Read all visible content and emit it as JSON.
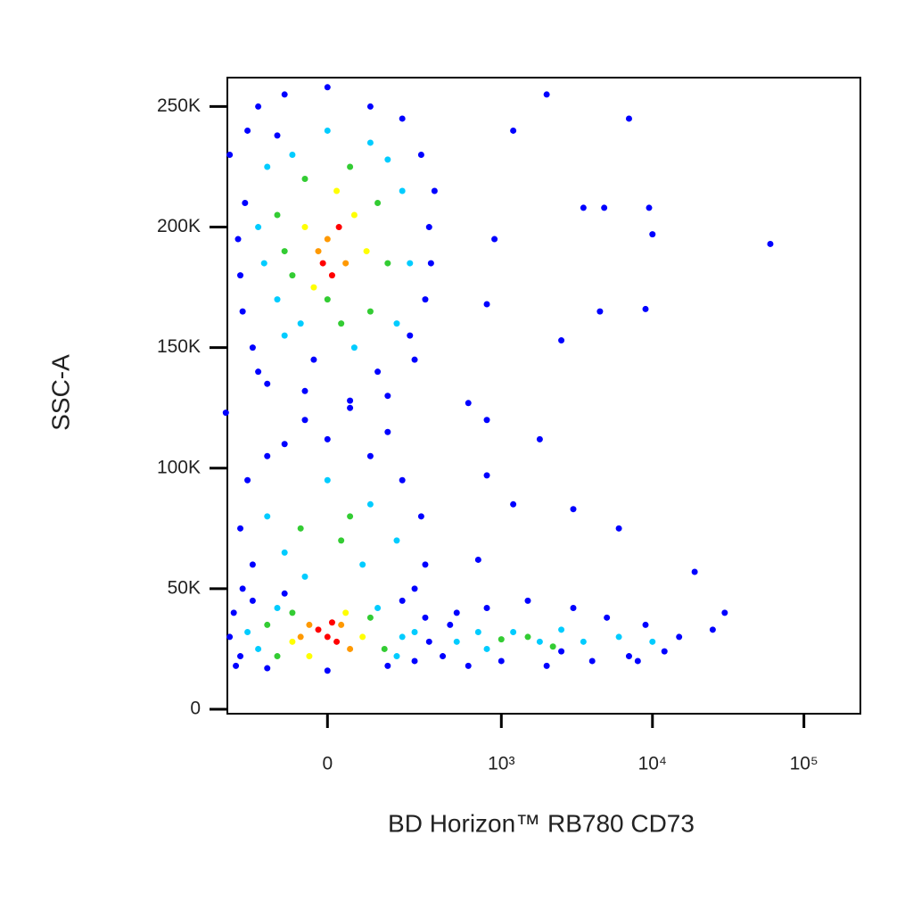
{
  "chart_data": {
    "type": "scatter",
    "x_label": "BD Horizon™ RB780 CD73",
    "y_label": "SSC-A",
    "xscale": "biexponential",
    "xlim": [
      -312,
      236000
    ],
    "ylim": [
      -1850,
      262000
    ],
    "xticks": [
      0,
      {
        "value": 1000,
        "label": "10³"
      },
      {
        "value": 10000,
        "label": "10⁴"
      },
      {
        "value": 100000,
        "label": "10⁵"
      }
    ],
    "yticks": [
      0,
      {
        "value": 50000,
        "label": "50K"
      },
      {
        "value": 100000,
        "label": "100K"
      },
      {
        "value": 150000,
        "label": "150K"
      },
      {
        "value": 200000,
        "label": "200K"
      },
      {
        "value": 250000,
        "label": "250K"
      }
    ],
    "points": [
      [
        -250,
        180000,
        "#00f"
      ],
      [
        -230,
        210000,
        "#00f"
      ],
      [
        -200,
        150000,
        "#00f"
      ],
      [
        -220,
        240000,
        "#00f"
      ],
      [
        -180,
        250000,
        "#00f"
      ],
      [
        -150,
        135000,
        "#00f"
      ],
      [
        -100,
        255000,
        "#00f"
      ],
      [
        0,
        258000,
        "#00f"
      ],
      [
        100,
        250000,
        "#00f"
      ],
      [
        200,
        245000,
        "#00f"
      ],
      [
        280,
        230000,
        "#00f"
      ],
      [
        320,
        200000,
        "#00f"
      ],
      [
        300,
        170000,
        "#00f"
      ],
      [
        250,
        145000,
        "#00f"
      ],
      [
        150,
        130000,
        "#00f"
      ],
      [
        50,
        128000,
        "#00f"
      ],
      [
        -50,
        132000,
        "#00f"
      ],
      [
        -260,
        195000,
        "#00f"
      ],
      [
        -240,
        165000,
        "#00f"
      ],
      [
        350,
        215000,
        "#00f"
      ],
      [
        330,
        185000,
        "#00f"
      ],
      [
        -120,
        238000,
        "#00f"
      ],
      [
        230,
        155000,
        "#00f"
      ],
      [
        -180,
        140000,
        "#00f"
      ],
      [
        120,
        140000,
        "#00f"
      ],
      [
        -30,
        145000,
        "#00f"
      ],
      [
        -180,
        200000,
        "#0cf"
      ],
      [
        -150,
        225000,
        "#0cf"
      ],
      [
        -120,
        170000,
        "#0cf"
      ],
      [
        -100,
        155000,
        "#0cf"
      ],
      [
        0,
        240000,
        "#0cf"
      ],
      [
        100,
        235000,
        "#0cf"
      ],
      [
        200,
        215000,
        "#0cf"
      ],
      [
        230,
        185000,
        "#0cf"
      ],
      [
        180,
        160000,
        "#0cf"
      ],
      [
        60,
        150000,
        "#0cf"
      ],
      [
        -60,
        160000,
        "#0cf"
      ],
      [
        -160,
        185000,
        "#0cf"
      ],
      [
        150,
        228000,
        "#0cf"
      ],
      [
        -80,
        230000,
        "#0cf"
      ],
      [
        -120,
        205000,
        "#3c3"
      ],
      [
        -80,
        180000,
        "#3c3"
      ],
      [
        -50,
        220000,
        "#3c3"
      ],
      [
        50,
        225000,
        "#3c3"
      ],
      [
        120,
        210000,
        "#3c3"
      ],
      [
        150,
        185000,
        "#3c3"
      ],
      [
        100,
        165000,
        "#3c3"
      ],
      [
        0,
        170000,
        "#3c3"
      ],
      [
        -100,
        190000,
        "#3c3"
      ],
      [
        30,
        160000,
        "#3c3"
      ],
      [
        -50,
        200000,
        "#ff0"
      ],
      [
        60,
        205000,
        "#ff0"
      ],
      [
        90,
        190000,
        "#ff0"
      ],
      [
        -30,
        175000,
        "#ff0"
      ],
      [
        20,
        215000,
        "#ff0"
      ],
      [
        0,
        195000,
        "#f90"
      ],
      [
        40,
        185000,
        "#f90"
      ],
      [
        -20,
        190000,
        "#f90"
      ],
      [
        10,
        180000,
        "#f00"
      ],
      [
        25,
        200000,
        "#f00"
      ],
      [
        -10,
        185000,
        "#f00"
      ],
      [
        -250,
        75000,
        "#00f"
      ],
      [
        -220,
        95000,
        "#00f"
      ],
      [
        -200,
        60000,
        "#00f"
      ],
      [
        -150,
        105000,
        "#00f"
      ],
      [
        -100,
        110000,
        "#00f"
      ],
      [
        0,
        112000,
        "#00f"
      ],
      [
        100,
        105000,
        "#00f"
      ],
      [
        200,
        95000,
        "#00f"
      ],
      [
        280,
        80000,
        "#00f"
      ],
      [
        300,
        60000,
        "#00f"
      ],
      [
        250,
        50000,
        "#00f"
      ],
      [
        -240,
        50000,
        "#00f"
      ],
      [
        150,
        115000,
        "#00f"
      ],
      [
        -50,
        120000,
        "#00f"
      ],
      [
        50,
        125000,
        "#00f"
      ],
      [
        -150,
        80000,
        "#0cf"
      ],
      [
        -100,
        65000,
        "#0cf"
      ],
      [
        0,
        95000,
        "#0cf"
      ],
      [
        100,
        85000,
        "#0cf"
      ],
      [
        180,
        70000,
        "#0cf"
      ],
      [
        -50,
        55000,
        "#0cf"
      ],
      [
        80,
        60000,
        "#0cf"
      ],
      [
        -60,
        75000,
        "#3c3"
      ],
      [
        30,
        70000,
        "#3c3"
      ],
      [
        50,
        80000,
        "#3c3"
      ],
      [
        -300,
        30000,
        "#00f"
      ],
      [
        -280,
        40000,
        "#00f"
      ],
      [
        -250,
        22000,
        "#00f"
      ],
      [
        -200,
        45000,
        "#00f"
      ],
      [
        -150,
        17000,
        "#00f"
      ],
      [
        -100,
        48000,
        "#00f"
      ],
      [
        0,
        16000,
        "#00f"
      ],
      [
        150,
        18000,
        "#00f"
      ],
      [
        250,
        20000,
        "#00f"
      ],
      [
        320,
        28000,
        "#00f"
      ],
      [
        300,
        38000,
        "#00f"
      ],
      [
        200,
        45000,
        "#00f"
      ],
      [
        -270,
        18000,
        "#00f"
      ],
      [
        -220,
        32000,
        "#0cf"
      ],
      [
        -180,
        25000,
        "#0cf"
      ],
      [
        200,
        30000,
        "#0cf"
      ],
      [
        180,
        22000,
        "#0cf"
      ],
      [
        -120,
        42000,
        "#0cf"
      ],
      [
        120,
        42000,
        "#0cf"
      ],
      [
        250,
        32000,
        "#0cf"
      ],
      [
        -150,
        35000,
        "#3c3"
      ],
      [
        -120,
        22000,
        "#3c3"
      ],
      [
        140,
        25000,
        "#3c3"
      ],
      [
        100,
        38000,
        "#3c3"
      ],
      [
        -80,
        40000,
        "#3c3"
      ],
      [
        -80,
        28000,
        "#ff0"
      ],
      [
        80,
        30000,
        "#ff0"
      ],
      [
        40,
        40000,
        "#ff0"
      ],
      [
        -40,
        22000,
        "#ff0"
      ],
      [
        -40,
        35000,
        "#f90"
      ],
      [
        50,
        25000,
        "#f90"
      ],
      [
        -60,
        30000,
        "#f90"
      ],
      [
        30,
        35000,
        "#f90"
      ],
      [
        0,
        30000,
        "#f00"
      ],
      [
        -20,
        33000,
        "#f00"
      ],
      [
        20,
        28000,
        "#f00"
      ],
      [
        10,
        36000,
        "#f00"
      ],
      [
        400,
        22000,
        "#00f"
      ],
      [
        500,
        40000,
        "#00f"
      ],
      [
        600,
        18000,
        "#00f"
      ],
      [
        800,
        42000,
        "#00f"
      ],
      [
        1000,
        20000,
        "#00f"
      ],
      [
        1500,
        45000,
        "#00f"
      ],
      [
        2000,
        18000,
        "#00f"
      ],
      [
        3000,
        42000,
        "#00f"
      ],
      [
        4000,
        20000,
        "#00f"
      ],
      [
        5000,
        38000,
        "#00f"
      ],
      [
        7000,
        22000,
        "#00f"
      ],
      [
        9000,
        35000,
        "#00f"
      ],
      [
        12000,
        24000,
        "#00f"
      ],
      [
        15000,
        30000,
        "#00f"
      ],
      [
        8000,
        20000,
        "#00f"
      ],
      [
        450,
        35000,
        "#00f"
      ],
      [
        2500,
        24000,
        "#00f"
      ],
      [
        500,
        28000,
        "#0cf"
      ],
      [
        800,
        25000,
        "#0cf"
      ],
      [
        1200,
        32000,
        "#0cf"
      ],
      [
        1800,
        28000,
        "#0cf"
      ],
      [
        2500,
        33000,
        "#0cf"
      ],
      [
        3500,
        28000,
        "#0cf"
      ],
      [
        6000,
        30000,
        "#0cf"
      ],
      [
        10000,
        28000,
        "#0cf"
      ],
      [
        700,
        32000,
        "#0cf"
      ],
      [
        1500,
        30000,
        "#3c3"
      ],
      [
        2200,
        26000,
        "#3c3"
      ],
      [
        1000,
        29000,
        "#3c3"
      ],
      [
        1200,
        240000,
        "#00f"
      ],
      [
        2000,
        255000,
        "#00f"
      ],
      [
        7000,
        245000,
        "#00f"
      ],
      [
        3500,
        208000,
        "#00f"
      ],
      [
        9500,
        208000,
        "#00f"
      ],
      [
        4800,
        208000,
        "#00f"
      ],
      [
        900,
        195000,
        "#00f"
      ],
      [
        10000,
        197000,
        "#00f"
      ],
      [
        60000,
        193000,
        "#00f"
      ],
      [
        800,
        168000,
        "#00f"
      ],
      [
        4500,
        165000,
        "#00f"
      ],
      [
        9000,
        166000,
        "#00f"
      ],
      [
        2500,
        153000,
        "#00f"
      ],
      [
        600,
        127000,
        "#00f"
      ],
      [
        800,
        120000,
        "#00f"
      ],
      [
        1800,
        112000,
        "#00f"
      ],
      [
        800,
        97000,
        "#00f"
      ],
      [
        1200,
        85000,
        "#00f"
      ],
      [
        3000,
        83000,
        "#00f"
      ],
      [
        6000,
        75000,
        "#00f"
      ],
      [
        19000,
        57000,
        "#00f"
      ],
      [
        30000,
        40000,
        "#00f"
      ],
      [
        25000,
        33000,
        "#00f"
      ],
      [
        700,
        62000,
        "#00f"
      ],
      [
        -320,
        123000,
        "#00f"
      ],
      [
        -300,
        230000,
        "#00f"
      ]
    ]
  }
}
